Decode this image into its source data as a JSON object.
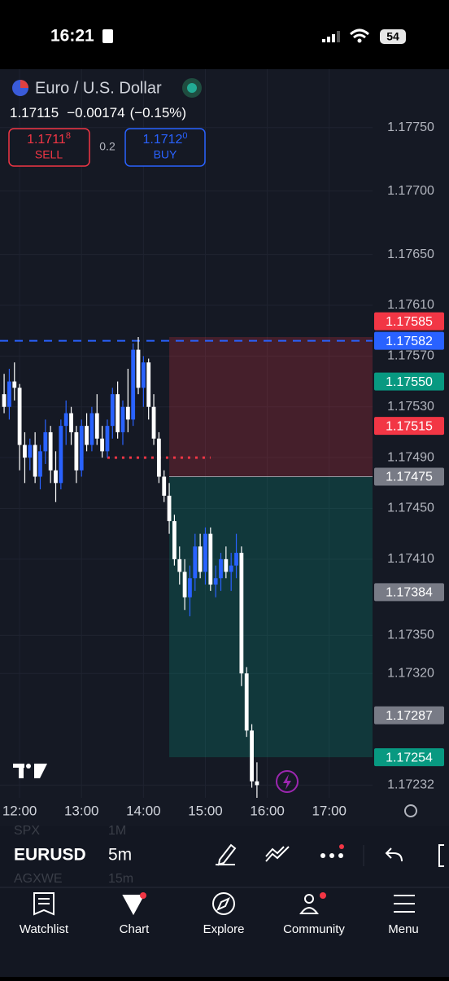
{
  "status_bar": {
    "time": "16:21",
    "battery": "54"
  },
  "header": {
    "symbol_name": "Euro / U.S. Dollar",
    "last": "1.17115",
    "change": "−0.00174",
    "change_percent": "(−0.15%)"
  },
  "trade": {
    "sell_price": "1.1711",
    "sell_pip": "8",
    "sell_label": "SELL",
    "spread": "0.2",
    "buy_price": "1.1712",
    "buy_pip": "0",
    "buy_label": "BUY"
  },
  "chart_data": {
    "type": "candlestick",
    "up_color": "#2962ff",
    "down_color": "#ffffff",
    "grid": true,
    "x": [
      "11:45",
      "11:50",
      "11:55",
      "12:00",
      "12:05",
      "12:10",
      "12:15",
      "12:20",
      "12:25",
      "12:30",
      "12:35",
      "12:40",
      "12:45",
      "12:50",
      "12:55",
      "13:00",
      "13:05",
      "13:10",
      "13:15",
      "13:20",
      "13:25",
      "13:30",
      "13:35",
      "13:40",
      "13:45",
      "13:50",
      "13:55",
      "14:00",
      "14:05",
      "14:10",
      "14:15",
      "14:20",
      "14:25",
      "14:30",
      "14:35",
      "14:40",
      "14:45",
      "14:50",
      "14:55",
      "15:00",
      "15:05",
      "15:10",
      "15:15",
      "15:20",
      "15:25",
      "15:30",
      "15:35",
      "15:40",
      "15:45",
      "15:50"
    ],
    "open": [
      1.1754,
      1.1753,
      1.1755,
      1.17545,
      1.175,
      1.1749,
      1.175,
      1.17475,
      1.17495,
      1.1751,
      1.1748,
      1.1747,
      1.17515,
      1.17525,
      1.1751,
      1.1748,
      1.17515,
      1.175,
      1.17525,
      1.17505,
      1.17495,
      1.17515,
      1.1754,
      1.1751,
      1.1753,
      1.1752,
      1.17575,
      1.17545,
      1.17565,
      1.1753,
      1.17505,
      1.17475,
      1.1746,
      1.1744,
      1.1741,
      1.174,
      1.1738,
      1.17395,
      1.1742,
      1.174,
      1.1743,
      1.1739,
      1.17395,
      1.1741,
      1.174,
      1.17405,
      1.17415,
      1.1732,
      1.17275,
      1.17235
    ],
    "high": [
      1.17556,
      1.1756,
      1.17565,
      1.17548,
      1.1751,
      1.17505,
      1.1751,
      1.175,
      1.1752,
      1.17515,
      1.17495,
      1.1752,
      1.17535,
      1.1753,
      1.17515,
      1.1752,
      1.17525,
      1.1753,
      1.1754,
      1.17515,
      1.1752,
      1.17545,
      1.1755,
      1.17535,
      1.1756,
      1.1758,
      1.17585,
      1.1757,
      1.17568,
      1.1754,
      1.1751,
      1.1748,
      1.1747,
      1.17445,
      1.1742,
      1.1741,
      1.17405,
      1.1743,
      1.1743,
      1.17435,
      1.17435,
      1.17405,
      1.17415,
      1.1742,
      1.17415,
      1.1743,
      1.1742,
      1.17325,
      1.1728,
      1.1725
    ],
    "low": [
      1.17525,
      1.1752,
      1.17535,
      1.1748,
      1.1747,
      1.1748,
      1.1747,
      1.17465,
      1.17485,
      1.1747,
      1.17455,
      1.17465,
      1.175,
      1.175,
      1.1747,
      1.17475,
      1.17495,
      1.17495,
      1.175,
      1.1749,
      1.1749,
      1.17505,
      1.17505,
      1.175,
      1.1751,
      1.17515,
      1.1754,
      1.1753,
      1.1752,
      1.175,
      1.1747,
      1.17455,
      1.1743,
      1.17405,
      1.1739,
      1.1737,
      1.17365,
      1.17385,
      1.17395,
      1.1739,
      1.17385,
      1.1738,
      1.17385,
      1.17395,
      1.17385,
      1.17395,
      1.1731,
      1.1727,
      1.1723,
      1.1722
    ],
    "close": [
      1.1753,
      1.1755,
      1.17545,
      1.175,
      1.1749,
      1.175,
      1.17475,
      1.17495,
      1.1751,
      1.1748,
      1.1747,
      1.17515,
      1.17525,
      1.1751,
      1.1748,
      1.17515,
      1.175,
      1.17525,
      1.17505,
      1.17495,
      1.17515,
      1.1754,
      1.1751,
      1.1753,
      1.1752,
      1.17575,
      1.17545,
      1.17565,
      1.1753,
      1.17505,
      1.17475,
      1.1746,
      1.1744,
      1.1741,
      1.174,
      1.1738,
      1.17395,
      1.1742,
      1.174,
      1.1743,
      1.1739,
      1.17395,
      1.1741,
      1.174,
      1.17405,
      1.17415,
      1.1732,
      1.17275,
      1.17235,
      1.17232
    ],
    "xlim": [
      "11:41",
      "17:42"
    ],
    "xticks": [
      "12:00",
      "13:00",
      "14:00",
      "15:00",
      "16:00",
      "17:00"
    ],
    "ylim": [
      1.17222,
      1.17796
    ],
    "yticks": [
      {
        "value": 1.1775,
        "label": "1.17750"
      },
      {
        "value": 1.177,
        "label": "1.17700"
      },
      {
        "value": 1.1765,
        "label": "1.17650"
      },
      {
        "value": 1.1761,
        "label": "1.17610"
      },
      {
        "value": 1.1757,
        "label": "1.17570"
      },
      {
        "value": 1.1753,
        "label": "1.17530"
      },
      {
        "value": 1.1749,
        "label": "1.17490"
      },
      {
        "value": 1.1745,
        "label": "1.17450"
      },
      {
        "value": 1.1741,
        "label": "1.17410"
      },
      {
        "value": 1.1735,
        "label": "1.17350"
      },
      {
        "value": 1.1732,
        "label": "1.17320"
      },
      {
        "value": 1.17232,
        "label": "1.17232"
      }
    ],
    "price_labels": [
      {
        "value": 1.17585,
        "label": "1.17585",
        "color": "#f23645"
      },
      {
        "value": 1.17582,
        "label": "1.17582",
        "color": "#2962ff"
      },
      {
        "value": 1.1755,
        "label": "1.17550",
        "color": "#089981"
      },
      {
        "value": 1.17515,
        "label": "1.17515",
        "color": "#f23645"
      },
      {
        "value": 1.17475,
        "label": "1.17475",
        "color": "#787b86"
      },
      {
        "value": 1.17384,
        "label": "1.17384",
        "color": "#787b86"
      },
      {
        "value": 1.17287,
        "label": "1.17287",
        "color": "#787b86"
      },
      {
        "value": 1.17254,
        "label": "1.17254",
        "color": "#089981"
      }
    ],
    "position": {
      "entry": 1.17475,
      "stop": 1.17585,
      "target": 1.17254,
      "start": "14:25"
    },
    "order_line": {
      "value": 1.17582,
      "color": "#2962ff"
    },
    "alert_line": {
      "value": 1.1749,
      "start": "13:25",
      "end": "15:05",
      "color": "#f23645"
    }
  },
  "toolbar": {
    "symbol": "EURUSD",
    "interval": "5m",
    "picker_above": [
      "SPX",
      "1M"
    ],
    "picker_below": [
      "AGXWE",
      "15m"
    ]
  },
  "tabs": [
    "Watchlist",
    "Chart",
    "Explore",
    "Community",
    "Menu"
  ]
}
